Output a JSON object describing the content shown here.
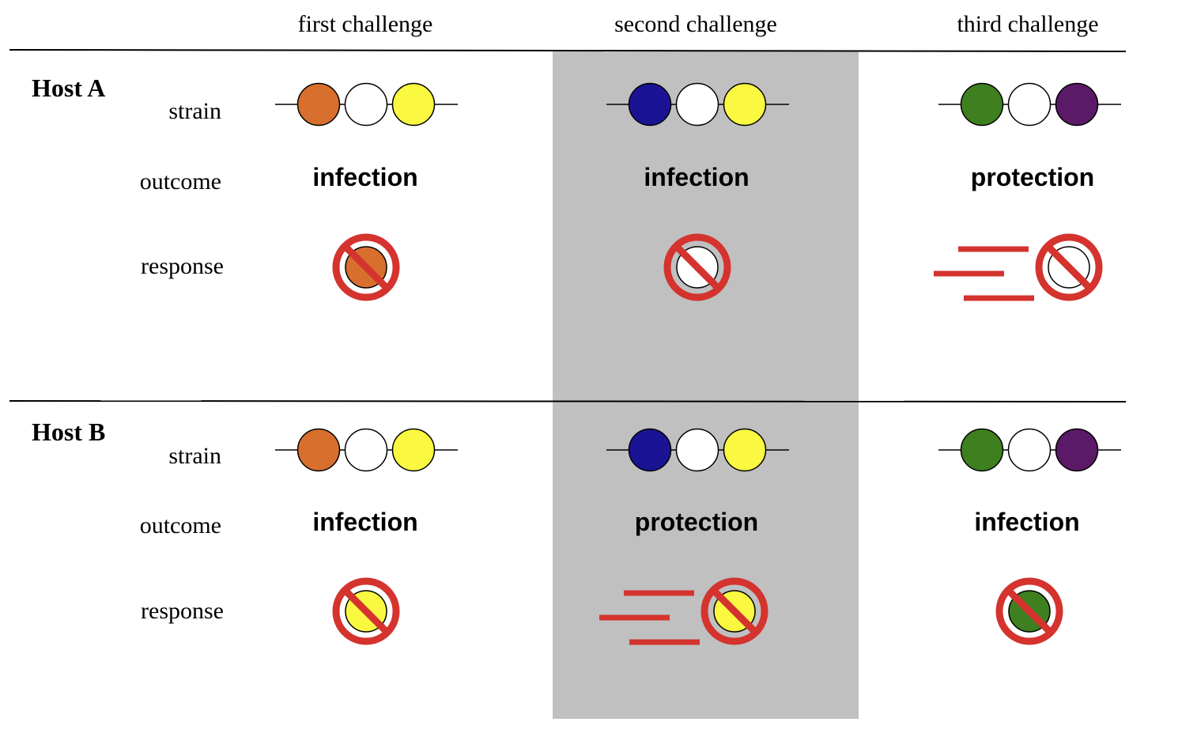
{
  "columns": [
    {
      "header": "first challenge"
    },
    {
      "header": "second challenge"
    },
    {
      "header": "third challenge"
    }
  ],
  "row_labels": {
    "strain": "strain",
    "outcome": "outcome",
    "response": "response"
  },
  "hosts": [
    {
      "name": "Host A",
      "challenges": [
        {
          "strain": [
            "orange",
            "white",
            "yellow"
          ],
          "outcome": "infection",
          "response_target": "orange",
          "fast_response": false
        },
        {
          "strain": [
            "blue",
            "white",
            "yellow"
          ],
          "outcome": "infection",
          "response_target": "white",
          "fast_response": false
        },
        {
          "strain": [
            "green",
            "white",
            "purple"
          ],
          "outcome": "protection",
          "response_target": "white",
          "fast_response": true
        }
      ]
    },
    {
      "name": "Host B",
      "challenges": [
        {
          "strain": [
            "orange",
            "white",
            "yellow"
          ],
          "outcome": "infection",
          "response_target": "yellow",
          "fast_response": false
        },
        {
          "strain": [
            "blue",
            "white",
            "yellow"
          ],
          "outcome": "protection",
          "response_target": "yellow",
          "fast_response": true
        },
        {
          "strain": [
            "green",
            "white",
            "purple"
          ],
          "outcome": "infection",
          "response_target": "green",
          "fast_response": false
        }
      ]
    }
  ],
  "colors": {
    "orange": "#d86f2e",
    "white": "#ffffff",
    "yellow": "#faf841",
    "blue": "#1a1494",
    "green": "#3e7f1f",
    "purple": "#5b1a67",
    "prohibition": "#d4332e",
    "highlight_band": "#c0c0c0"
  }
}
